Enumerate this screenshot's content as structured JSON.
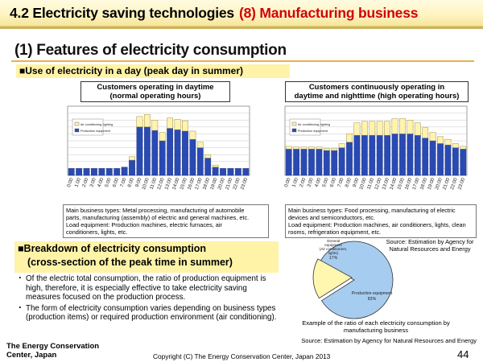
{
  "header": {
    "title": "4.2 Electricity saving technologies",
    "subtitle": "(8) Manufacturing business"
  },
  "section_title": "(1) Features of electricity consumption",
  "use_title": "■Use of electricity in a day (peak day in summer)",
  "left_panel": {
    "title_line1": "Customers operating in daytime",
    "title_line2": "(normal operating hours)",
    "notes_line1": "Main business types: Metal processing, manufacturing of automobile",
    "notes_line2": "parts, manufacturing (assembly) of electric and general machines, etc.",
    "notes_line3": "Load equipment: Production machines, electric furnaces, air",
    "notes_line4": "conditioners, lights, etc."
  },
  "right_panel": {
    "title_line1": "Customers continuously operating in",
    "title_line2": "daytime and nighttime (high operating hours)",
    "notes_line1": "Main business types: Food processing, manufacturing of electric",
    "notes_line2": "devices and semiconductors, etc.",
    "notes_line3": "Load equipment: Production machines, air conditioners, lights, clean",
    "notes_line4": "rooms, refrigeration equipment, etc."
  },
  "breakdown": {
    "title_line1": "■Breakdown of electricity consumption",
    "title_line2": "(cross-section of the peak time in summer)",
    "para1": "Of the electric total consumption, the ratio of production equipment is high, therefore, it is especially effective to take electricity saving measures focused on the production process.",
    "para2": "The form of electricity consumption varies depending on business types (production items) or required production environment (air conditioning)."
  },
  "pie_caption_line1": "Example of the ratio of each electricity consumption by",
  "pie_caption_line2": "manufacturing business",
  "source1_line1": "Source: Estimation by Agency for",
  "source1_line2": "Natural Resources and Energy",
  "source2": "Source: Estimation by Agency for Natural Resources and Energy",
  "footer": {
    "org_line1": "The Energy Conservation",
    "org_line2": "Center, Japan",
    "copyright": "Copyright (C) The Energy Conservation Center, Japan 2013",
    "page": "44"
  },
  "colors": {
    "production": "#2a4ab3",
    "ac_lights": "#fff3b0",
    "pie_production": "#a6cdf0",
    "pie_ac": "#fff6b0"
  },
  "chart_data": [
    {
      "type": "bar",
      "stacked": true,
      "legend": [
        "Air conditioning, lighting",
        "Production equipment"
      ],
      "legend_position": "top-left",
      "categories": [
        "0:00",
        "1:00",
        "2:00",
        "3:00",
        "4:00",
        "5:00",
        "6:00",
        "7:00",
        "8:00",
        "9:00",
        "10:00",
        "11:00",
        "12:00",
        "13:00",
        "14:00",
        "15:00",
        "16:00",
        "17:00",
        "18:00",
        "19:00",
        "20:00",
        "21:00",
        "22:00",
        "23:00"
      ],
      "series": [
        {
          "name": "Production equipment",
          "values": [
            10,
            10,
            10,
            10,
            10,
            10,
            10,
            12,
            22,
            70,
            70,
            65,
            50,
            68,
            66,
            64,
            52,
            40,
            25,
            12,
            10,
            10,
            10,
            10
          ]
        },
        {
          "name": "Air conditioning, lighting",
          "values": [
            0,
            0,
            0,
            0,
            0,
            0,
            0,
            0,
            5,
            15,
            18,
            15,
            12,
            15,
            15,
            15,
            12,
            8,
            5,
            3,
            0,
            0,
            0,
            0
          ]
        }
      ],
      "ylim": [
        0,
        100
      ],
      "grid": true
    },
    {
      "type": "bar",
      "stacked": true,
      "legend": [
        "Air conditioning, lighting",
        "Production equipment"
      ],
      "legend_position": "top-left",
      "categories": [
        "0:00",
        "1:00",
        "2:00",
        "3:00",
        "4:00",
        "5:00",
        "6:00",
        "7:00",
        "8:00",
        "9:00",
        "10:00",
        "11:00",
        "12:00",
        "13:00",
        "14:00",
        "15:00",
        "16:00",
        "17:00",
        "18:00",
        "19:00",
        "20:00",
        "21:00",
        "22:00",
        "23:00"
      ],
      "series": [
        {
          "name": "Production equipment",
          "values": [
            38,
            38,
            38,
            38,
            38,
            36,
            36,
            40,
            48,
            58,
            58,
            58,
            58,
            58,
            60,
            60,
            60,
            58,
            54,
            50,
            46,
            44,
            40,
            38
          ]
        },
        {
          "name": "Air conditioning, lighting",
          "values": [
            4,
            3,
            3,
            3,
            3,
            3,
            3,
            6,
            12,
            18,
            20,
            20,
            20,
            20,
            22,
            22,
            20,
            18,
            15,
            12,
            10,
            8,
            6,
            4
          ]
        }
      ],
      "ylim": [
        0,
        100
      ],
      "grid": true
    },
    {
      "type": "pie",
      "labels": [
        "Production equipment",
        "General equipment (Air conditioners, lights)"
      ],
      "values": [
        83,
        17
      ],
      "value_labels": [
        "83%",
        "17%"
      ]
    }
  ]
}
